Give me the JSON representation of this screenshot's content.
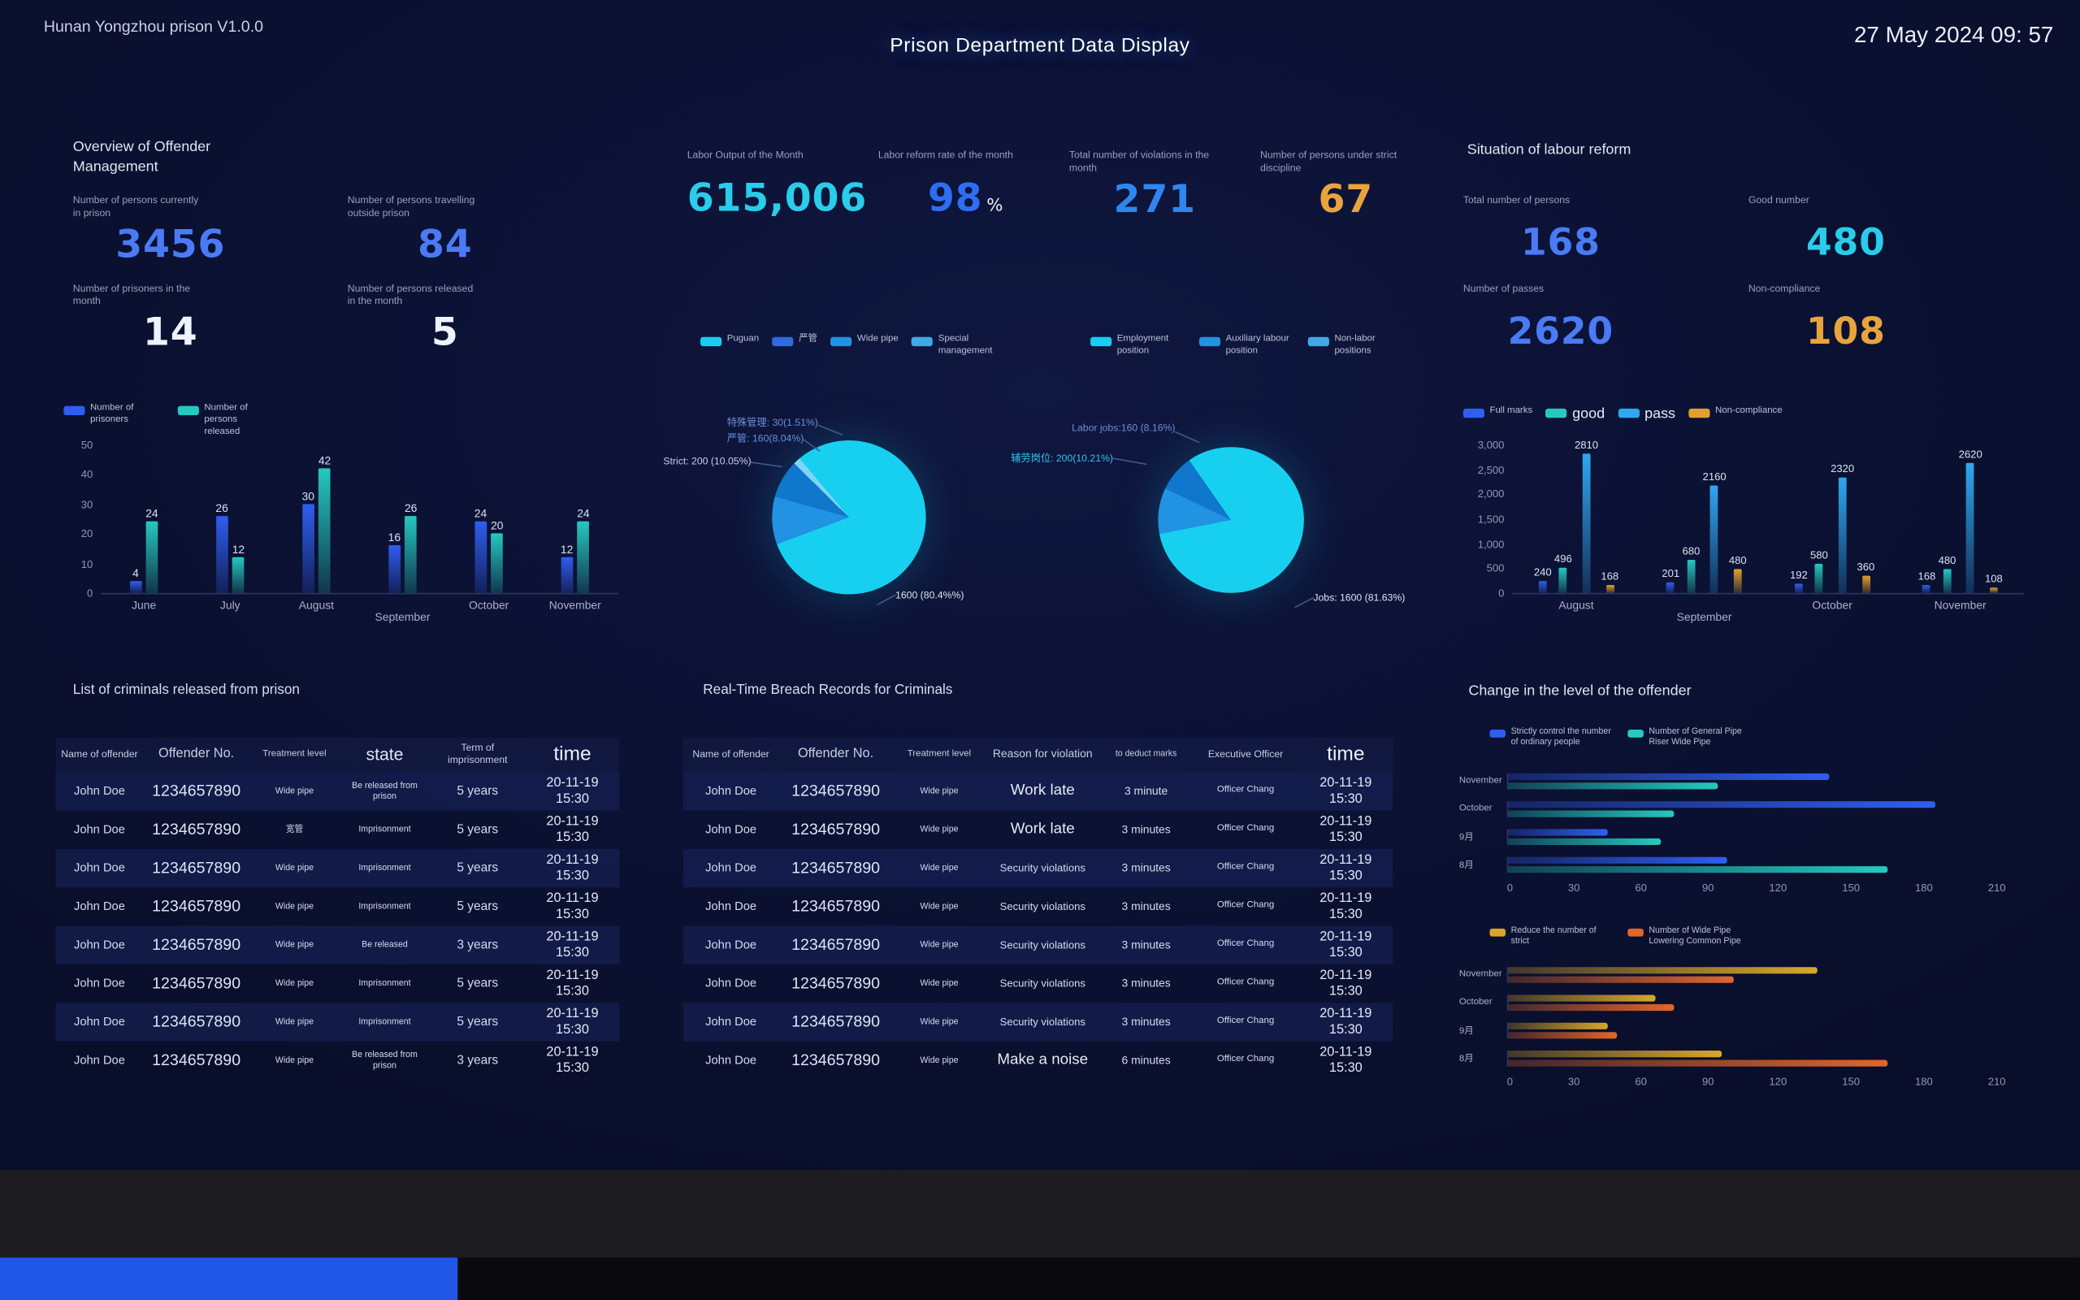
{
  "header": {
    "app_title": "Hunan Yongzhou prison V1.0.0",
    "page_title": "Prison Department Data Display",
    "datetime": "27 May 2024 09: 57"
  },
  "left": {
    "overview_title": "Overview of Offender Management",
    "stats": [
      {
        "label": "Number of persons currently in prison",
        "value": "3456",
        "color": "#4a7bf5"
      },
      {
        "label": "Number of persons travelling outside prison",
        "value": "84",
        "color": "#4a7bf5"
      },
      {
        "label": "Number of prisoners in the month",
        "value": "14",
        "color": "#eef2fa"
      },
      {
        "label": "Number of persons released in the month",
        "value": "5",
        "color": "#eef2fa"
      }
    ],
    "released_table": {
      "title": "List of criminals released from prison",
      "columns": [
        "Name of offender",
        "Offender No.",
        "Treatment level",
        "state",
        "Term of imprisonment",
        "time"
      ],
      "rows": [
        {
          "name": "John Doe",
          "no": "1234657890",
          "level": "Wide pipe",
          "state": "Be released from prison",
          "term": "5 years",
          "time": "20-11-19 15:30"
        },
        {
          "name": "John Doe",
          "no": "1234657890",
          "level": "宽管",
          "state": "Imprisonment",
          "term": "5 years",
          "time": "20-11-19 15:30"
        },
        {
          "name": "John Doe",
          "no": "1234657890",
          "level": "Wide pipe",
          "state": "Imprisonment",
          "term": "5 years",
          "time": "20-11-19 15:30"
        },
        {
          "name": "John Doe",
          "no": "1234657890",
          "level": "Wide pipe",
          "state": "Imprisonment",
          "term": "5 years",
          "time": "20-11-19 15:30"
        },
        {
          "name": "John Doe",
          "no": "1234657890",
          "level": "Wide pipe",
          "state": "Be released",
          "term": "3 years",
          "time": "20-11-19 15:30"
        },
        {
          "name": "John Doe",
          "no": "1234657890",
          "level": "Wide pipe",
          "state": "Imprisonment",
          "term": "5 years",
          "time": "20-11-19 15:30"
        },
        {
          "name": "John Doe",
          "no": "1234657890",
          "level": "Wide pipe",
          "state": "Imprisonment",
          "term": "5 years",
          "time": "20-11-19 15:30"
        },
        {
          "name": "John Doe",
          "no": "1234657890",
          "level": "Wide pipe",
          "state": "Be released from prison",
          "term": "3 years",
          "time": "20-11-19 15:30"
        }
      ]
    }
  },
  "middle": {
    "stats": [
      {
        "label": "Labor Output of the Month",
        "value": "615,006",
        "color": "#28cdea"
      },
      {
        "label": "Labor reform rate of the month",
        "value": "98",
        "suffix": "%",
        "color": "#2e6df5"
      },
      {
        "label": "Total number of violations in the month",
        "value": "271",
        "color": "#2f86f0"
      },
      {
        "label": "Number of persons under strict discipline",
        "value": "67",
        "color": "#e8a43c"
      }
    ],
    "breach_table": {
      "title": "Real-Time Breach Records for Criminals",
      "columns": [
        "Name of offender",
        "Offender No.",
        "Treatment level",
        "Reason for violation",
        "to deduct marks",
        "Executive Officer",
        "time"
      ],
      "rows": [
        {
          "name": "John Doe",
          "no": "1234657890",
          "level": "Wide pipe",
          "reason": "Work late",
          "marks": "3 minute",
          "officer": "Officer Chang",
          "time": "20-11-19 15:30"
        },
        {
          "name": "John Doe",
          "no": "1234657890",
          "level": "Wide pipe",
          "reason": "Work late",
          "marks": "3 minutes",
          "officer": "Officer Chang",
          "time": "20-11-19 15:30"
        },
        {
          "name": "John Doe",
          "no": "1234657890",
          "level": "Wide pipe",
          "reason": "Security violations",
          "marks": "3 minutes",
          "officer": "Officer Chang",
          "time": "20-11-19 15:30"
        },
        {
          "name": "John Doe",
          "no": "1234657890",
          "level": "Wide pipe",
          "reason": "Security violations",
          "marks": "3 minutes",
          "officer": "Officer Chang",
          "time": "20-11-19 15:30"
        },
        {
          "name": "John Doe",
          "no": "1234657890",
          "level": "Wide pipe",
          "reason": "Security violations",
          "marks": "3 minutes",
          "officer": "Officer Chang",
          "time": "20-11-19 15:30"
        },
        {
          "name": "John Doe",
          "no": "1234657890",
          "level": "Wide pipe",
          "reason": "Security violations",
          "marks": "3 minutes",
          "officer": "Officer Chang",
          "time": "20-11-19 15:30"
        },
        {
          "name": "John Doe",
          "no": "1234657890",
          "level": "Wide pipe",
          "reason": "Security violations",
          "marks": "3 minutes",
          "officer": "Officer Chang",
          "time": "20-11-19 15:30"
        },
        {
          "name": "John Doe",
          "no": "1234657890",
          "level": "Wide pipe",
          "reason": "Make a noise",
          "marks": "6 minutes",
          "officer": "Officer Chang",
          "time": "20-11-19 15:30"
        }
      ]
    }
  },
  "right": {
    "situation_title": "Situation of labour reform",
    "stats": [
      {
        "label": "Total number of persons",
        "value": "168",
        "color": "#4a7bf5"
      },
      {
        "label": "Good number",
        "value": "480",
        "color": "#28cdea"
      },
      {
        "label": "Number of passes",
        "value": "2620",
        "color": "#4a7bf5"
      },
      {
        "label": "Non-compliance",
        "value": "108",
        "color": "#e8a43c"
      }
    ],
    "level_change_title": "Change in the level of the offender"
  },
  "chart_data": [
    {
      "id": "prisoners_by_month",
      "type": "bar",
      "title": "Prisoners and releases by month",
      "categories": [
        "June",
        "July",
        "August",
        "September",
        "October",
        "November"
      ],
      "series": [
        {
          "name": "Number of prisoners",
          "color": "#2f5ef0",
          "values": [
            4,
            26,
            30,
            16,
            24,
            12
          ]
        },
        {
          "name": "Number of persons released",
          "color": "#25c9bf",
          "values": [
            24,
            12,
            42,
            26,
            20,
            24
          ]
        }
      ],
      "ylim": [
        0,
        50
      ],
      "yticks": [
        0,
        10,
        20,
        30,
        40,
        50
      ],
      "legend_position": "top",
      "grid": false
    },
    {
      "id": "labor_reform_pie",
      "type": "pie",
      "start_angle": 320,
      "slices": [
        {
          "label": "Puguan",
          "value": 1600,
          "pct": "80.4%",
          "color": "#17d0f0",
          "annotation": "1600 (80.4%%)",
          "ann_color": "#dde4f2"
        },
        {
          "label": "Strict",
          "value": 200,
          "pct": "10.05%",
          "color": "#2292e2",
          "annotation": "Strict: 200 (10.05%)",
          "ann_color": "#c8d2e8"
        },
        {
          "label": "严管",
          "value": 160,
          "pct": "8.04%",
          "color": "#0f77cc",
          "annotation": "严管: 160(8.04%)",
          "ann_color": "#6b8fd8"
        },
        {
          "label": "特殊管理",
          "value": 30,
          "pct": "1.51%",
          "color": "#7fd4f5",
          "annotation": "特殊管理: 30(1.51%)",
          "ann_color": "#6b8fd8"
        }
      ],
      "legend": [
        {
          "label": "Puguan",
          "color": "#17d0f0"
        },
        {
          "label": "严管",
          "color": "#2f6ae0"
        },
        {
          "label": "Wide pipe",
          "color": "#2292e2"
        },
        {
          "label": "Special management",
          "color": "#3fa9e8"
        }
      ]
    },
    {
      "id": "labor_positions_pie",
      "type": "pie",
      "start_angle": 325,
      "slices": [
        {
          "label": "Jobs",
          "value": 1600,
          "pct": "81.63%",
          "color": "#17d0f0",
          "annotation": "Jobs: 1600 (81.63%)",
          "ann_color": "#dde4f2"
        },
        {
          "label": "辅劳岗位",
          "value": 200,
          "pct": "10.21%",
          "color": "#2292e2",
          "annotation": "辅劳岗位: 200(10.21%)",
          "ann_color": "#2fc4e8"
        },
        {
          "label": "Labor jobs",
          "value": 160,
          "pct": "8.16%",
          "color": "#0f77cc",
          "annotation": "Labor jobs:160 (8.16%)",
          "ann_color": "#6b8fd8"
        }
      ],
      "legend": [
        {
          "label": "Employment position",
          "color": "#17d0f0"
        },
        {
          "label": "Auxiliary labour position",
          "color": "#2292e2"
        },
        {
          "label": "Non-labor positions",
          "color": "#3fa9e8"
        }
      ]
    },
    {
      "id": "labour_reform_levels",
      "type": "bar",
      "title": "Situation of labour reform by month",
      "categories": [
        "August",
        "September",
        "October",
        "November"
      ],
      "series": [
        {
          "name": "Full marks",
          "color": "#2f5ef0",
          "values": [
            240,
            201,
            192,
            168
          ]
        },
        {
          "name": "good",
          "color": "#25c9bf",
          "values": [
            496,
            680,
            580,
            480
          ]
        },
        {
          "name": "pass",
          "color": "#2fa8f0",
          "values": [
            2810,
            2160,
            2320,
            2620
          ]
        },
        {
          "name": "Non-compliance",
          "color": "#e2a02e",
          "values": [
            168,
            480,
            360,
            108
          ]
        }
      ],
      "ylim": [
        0,
        3000
      ],
      "yticks": [
        0,
        500,
        1000,
        1500,
        2000,
        2500,
        3000
      ],
      "legend_position": "top",
      "grid": false
    },
    {
      "id": "level_change_up",
      "type": "bar-horizontal",
      "categories": [
        "November",
        "October",
        "9月",
        "8月"
      ],
      "series": [
        {
          "name": "Strictly control the number of ordinary people",
          "color": "#2f5ef0",
          "values": [
            135,
            180,
            42,
            92
          ]
        },
        {
          "name": "Number of General Pipe Riser Wide Pipe",
          "color": "#25c9bf",
          "values": [
            88,
            70,
            64,
            160
          ]
        }
      ],
      "xlim": [
        0,
        210
      ],
      "xticks": [
        0,
        30,
        60,
        90,
        120,
        150,
        180,
        210
      ]
    },
    {
      "id": "level_change_down",
      "type": "bar-horizontal",
      "categories": [
        "November",
        "October",
        "9月",
        "8月"
      ],
      "series": [
        {
          "name": "Reduce the number of strict",
          "color": "#d8a62a",
          "values": [
            130,
            62,
            42,
            90
          ]
        },
        {
          "name": "Number of Wide Pipe Lowering Common Pipe",
          "color": "#e0662c",
          "values": [
            95,
            70,
            46,
            160
          ]
        }
      ],
      "xlim": [
        0,
        210
      ],
      "xticks": [
        0,
        30,
        60,
        90,
        120,
        150,
        180,
        210
      ]
    }
  ]
}
